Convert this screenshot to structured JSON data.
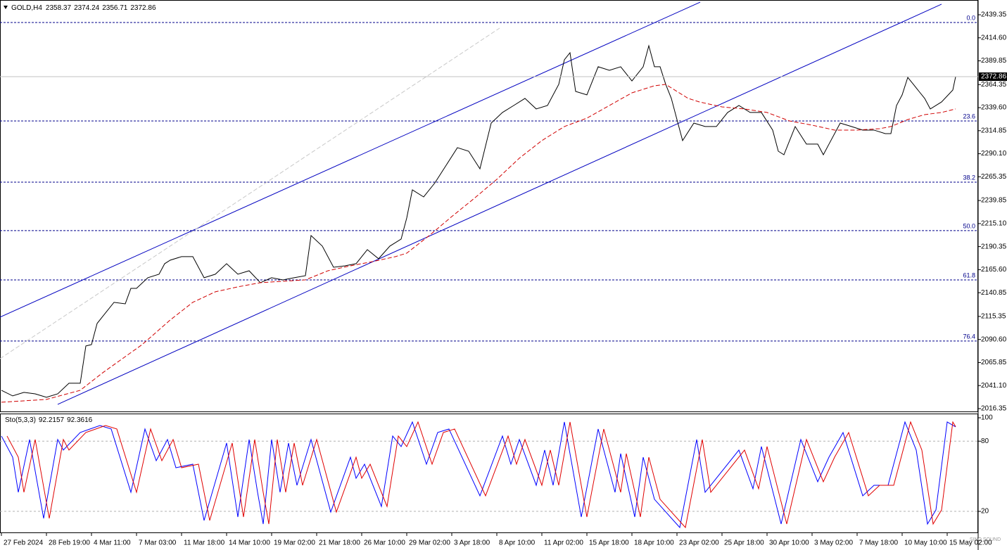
{
  "chart_data": [
    {
      "type": "line",
      "symbol": "GOLD,H4",
      "ohlc": [
        2358.37,
        2374.24,
        2356.71,
        2372.86
      ],
      "xlim": [
        -0.5,
        347
      ],
      "xticks": [
        {
          "value": 0,
          "label": "27 Feb 2024"
        },
        {
          "value": 16,
          "label": "28 Feb 19:00"
        },
        {
          "value": 32,
          "label": "4 Mar 11:00"
        },
        {
          "value": 48,
          "label": "7 Mar 03:00"
        },
        {
          "value": 64,
          "label": "11 Mar 18:00"
        },
        {
          "value": 80,
          "label": "14 Mar 10:00"
        },
        {
          "value": 96,
          "label": "19 Mar 02:00"
        },
        {
          "value": 112,
          "label": "21 Mar 18:00"
        },
        {
          "value": 128,
          "label": "26 Mar 10:00"
        },
        {
          "value": 144,
          "label": "29 Mar 02:00"
        },
        {
          "value": 160,
          "label": "3 Apr 18:00"
        },
        {
          "value": 176,
          "label": "8 Apr 10:00"
        },
        {
          "value": 192,
          "label": "11 Apr 02:00"
        },
        {
          "value": 208,
          "label": "15 Apr 18:00"
        },
        {
          "value": 224,
          "label": "18 Apr 10:00"
        },
        {
          "value": 240,
          "label": "23 Apr 02:00"
        },
        {
          "value": 256,
          "label": "25 Apr 18:00"
        },
        {
          "value": 272,
          "label": "30 Apr 10:00"
        },
        {
          "value": 288,
          "label": "3 May 02:00"
        },
        {
          "value": 304,
          "label": "7 May 18:00"
        },
        {
          "value": 320,
          "label": "10 May 10:00"
        },
        {
          "value": 336,
          "label": "15 May 02:00"
        }
      ],
      "ylim": [
        2013.3,
        2455.2
      ],
      "yticks": [
        2016.35,
        {
          "value": 2041.1,
          "label": "2041.10"
        },
        2065.85,
        {
          "value": 2090.6,
          "label": "2090.60"
        },
        2115.35,
        2140.85,
        {
          "value": 2165.6,
          "label": "2165.60"
        },
        2190.35,
        {
          "value": 2215.1,
          "label": "2215.10"
        },
        2239.85,
        2265.35,
        {
          "value": 2290.1,
          "label": "2290.10"
        },
        2314.85,
        {
          "value": 2339.6,
          "label": "2339.60"
        },
        2364.35,
        2389.85,
        {
          "value": 2414.6,
          "label": "2414.60"
        },
        2439.35
      ],
      "series": [
        {
          "color": "#000000",
          "dash": false,
          "x": [
            0,
            4,
            8,
            12,
            16,
            20,
            24,
            28,
            30,
            32,
            34,
            36,
            40,
            44,
            46,
            48,
            52,
            56,
            58,
            60,
            64,
            68,
            72,
            76,
            80,
            84,
            88,
            92,
            96,
            100,
            104,
            108,
            110,
            114,
            118,
            122,
            126,
            130,
            134,
            138,
            142,
            144,
            146,
            150,
            154,
            158,
            162,
            166,
            170,
            174,
            178,
            182,
            186,
            190,
            194,
            198,
            200,
            202,
            204,
            208,
            212,
            216,
            220,
            224,
            228,
            230,
            232,
            234,
            236,
            238,
            240,
            242,
            246,
            250,
            254,
            258,
            262,
            266,
            270,
            274,
            276,
            278,
            282,
            286,
            290,
            292,
            294,
            298,
            302,
            306,
            310,
            314,
            316,
            318,
            320,
            322,
            324,
            326,
            328,
            330,
            334,
            338,
            339
          ],
          "values": [
            2036.0,
            2030.0,
            2033.8,
            2032.2,
            2028.5,
            2032.2,
            2043.6,
            2043.6,
            2083.6,
            2085.1,
            2107.8,
            2115.4,
            2130.5,
            2128.9,
            2145.5,
            2145.5,
            2156.9,
            2160.7,
            2172.0,
            2175.8,
            2179.6,
            2179.6,
            2156.9,
            2160.7,
            2172.0,
            2160.7,
            2164.4,
            2151.6,
            2156.9,
            2154.6,
            2156.9,
            2159.1,
            2202.2,
            2190.9,
            2168.2,
            2169.7,
            2172.0,
            2187.1,
            2177.3,
            2190.9,
            2198.4,
            2221.1,
            2251.3,
            2243.7,
            2258.8,
            2277.7,
            2296.6,
            2292.8,
            2273.9,
            2323.0,
            2334.4,
            2341.9,
            2349.5,
            2338.2,
            2341.9,
            2364.6,
            2391.0,
            2398.6,
            2357.0,
            2353.3,
            2383.5,
            2379.7,
            2383.5,
            2368.3,
            2383.5,
            2406.1,
            2383.5,
            2383.5,
            2364.6,
            2349.5,
            2326.8,
            2304.2,
            2323.0,
            2319.3,
            2319.3,
            2334.4,
            2341.9,
            2334.4,
            2334.4,
            2315.5,
            2292.8,
            2289.0,
            2319.3,
            2300.4,
            2300.4,
            2289.0,
            2300.4,
            2323.0,
            2319.3,
            2315.5,
            2315.5,
            2311.7,
            2311.7,
            2341.9,
            2353.3,
            2372.1,
            2364.6,
            2357.0,
            2349.5,
            2338.2,
            2345.7,
            2358.5,
            2372.86
          ]
        },
        {
          "color": "#d00000",
          "dash": true,
          "x": [
            0,
            16,
            28,
            36,
            50,
            60,
            68,
            76,
            84,
            92,
            100,
            108,
            116,
            124,
            132,
            140,
            144,
            152,
            160,
            168,
            176,
            184,
            192,
            200,
            208,
            216,
            224,
            232,
            236,
            240,
            244,
            248,
            256,
            264,
            272,
            280,
            288,
            296,
            304,
            312,
            316,
            322,
            328,
            334,
            339
          ],
          "values": [
            2023.2,
            2026.2,
            2036.0,
            2054.9,
            2085.1,
            2111.6,
            2130.5,
            2141.8,
            2147.1,
            2151.6,
            2153.1,
            2154.6,
            2164.4,
            2169.7,
            2174.3,
            2179.6,
            2183.3,
            2202.2,
            2222.6,
            2242.2,
            2262.6,
            2285.3,
            2304.2,
            2319.3,
            2328.3,
            2341.9,
            2355.5,
            2363.1,
            2364.6,
            2357.0,
            2349.5,
            2345.7,
            2340.4,
            2338.2,
            2334.4,
            2325.3,
            2320.8,
            2315.5,
            2315.5,
            2317.0,
            2319.3,
            2326.8,
            2332.1,
            2334.4,
            2338.2
          ]
        }
      ],
      "trend_lines": [
        {
          "color": "#0000c0",
          "dash": false,
          "x": [
            -0.5,
            248.25
          ],
          "values": [
            2114.6,
            2452.9
          ]
        },
        {
          "color": "#0000c0",
          "dash": false,
          "x": [
            20,
            334
          ],
          "values": [
            2020.9,
            2450.7
          ]
        },
        {
          "color": "#c8c8c8",
          "dash": true,
          "x": [
            -0.5,
            177
          ],
          "values": [
            2070.0,
            2425.0
          ]
        }
      ],
      "fib_color": "#00008b",
      "fib_levels": [
        {
          "label": "0.0",
          "value": 2431.0
        },
        {
          "label": "23.6",
          "value": 2325.3
        },
        {
          "label": "38.2",
          "value": 2259.6
        },
        {
          "label": "50.0",
          "value": 2207.5
        },
        {
          "label": "61.8",
          "value": 2154.6
        },
        {
          "label": "76.4",
          "value": 2088.9
        }
      ]
    },
    {
      "type": "line",
      "label": "Sto(5,3,3)",
      "readings": [
        92.2157,
        92.3616
      ],
      "ylim": [
        2,
        103.6
      ],
      "yticks": [
        20,
        80,
        100
      ],
      "levels": [
        20,
        80
      ],
      "series": [
        {
          "color": "#0000ff",
          "dash": false,
          "x": [
            0,
            4,
            6,
            10,
            15,
            20,
            22,
            28,
            35,
            39,
            46,
            51,
            55,
            59,
            62,
            68,
            72,
            80,
            84,
            88,
            91,
            93,
            96,
            99,
            102,
            105,
            110,
            117,
            124,
            126,
            129,
            135,
            139,
            142,
            146,
            151,
            155,
            159,
            170,
            178,
            181,
            184,
            190,
            193,
            196,
            200,
            206,
            212,
            218,
            220,
            225,
            228,
            232,
            241,
            247,
            250,
            252,
            262,
            267,
            270,
            277,
            284,
            290,
            294,
            299,
            306,
            310,
            315,
            321,
            325,
            329,
            332,
            336,
            339
          ],
          "values": [
            84.4,
            66.3,
            36.3,
            81.4,
            14.0,
            81.4,
            72.4,
            87.4,
            93.4,
            90.4,
            36.3,
            90.4,
            63.3,
            81.4,
            57.3,
            60.3,
            12.2,
            78.4,
            15.2,
            81.4,
            36.3,
            9.2,
            81.4,
            36.3,
            78.4,
            42.3,
            81.4,
            19.4,
            66.3,
            48.3,
            60.3,
            24.2,
            84.4,
            75.4,
            96.4,
            60.3,
            87.4,
            90.4,
            33.3,
            84.4,
            60.3,
            81.4,
            42.3,
            72.4,
            42.3,
            96.4,
            15.2,
            90.4,
            36.3,
            69.4,
            15.2,
            66.3,
            30.3,
            6.2,
            81.4,
            36.3,
            42.3,
            72.4,
            39.3,
            75.4,
            9.2,
            81.4,
            45.3,
            66.3,
            87.4,
            33.3,
            42.3,
            42.3,
            96.4,
            72.4,
            9.2,
            21.2,
            96.4,
            92.2157
          ]
        },
        {
          "color": "#e00000",
          "dash": false,
          "x": [
            2,
            6,
            8,
            12,
            17,
            22,
            24,
            30,
            37,
            41,
            48,
            53,
            57,
            61,
            64,
            70,
            74,
            82,
            86,
            90,
            93,
            95,
            98,
            101,
            104,
            107,
            112,
            119,
            126,
            128,
            131,
            137,
            141,
            144,
            148,
            153,
            157,
            161,
            172,
            180,
            183,
            186,
            192,
            195,
            198,
            202,
            208,
            214,
            220,
            222,
            227,
            230,
            234,
            243,
            249,
            252,
            254,
            264,
            269,
            272,
            279,
            286,
            292,
            296,
            301,
            308,
            312,
            317,
            323,
            327,
            331,
            334,
            338,
            339
          ],
          "values": [
            84.4,
            66.3,
            36.3,
            81.4,
            14.0,
            81.4,
            72.4,
            87.4,
            93.4,
            90.4,
            36.3,
            90.4,
            63.3,
            81.4,
            57.3,
            60.3,
            12.2,
            78.4,
            15.2,
            81.4,
            36.3,
            9.2,
            81.4,
            36.3,
            78.4,
            42.3,
            81.4,
            19.4,
            66.3,
            48.3,
            60.3,
            24.2,
            84.4,
            75.4,
            96.4,
            60.3,
            87.4,
            90.4,
            33.3,
            84.4,
            60.3,
            81.4,
            42.3,
            72.4,
            42.3,
            96.4,
            15.2,
            90.4,
            36.3,
            69.4,
            15.2,
            66.3,
            30.3,
            6.2,
            81.4,
            36.3,
            42.3,
            72.4,
            39.3,
            75.4,
            9.2,
            81.4,
            45.3,
            66.3,
            87.4,
            33.3,
            42.3,
            42.3,
            96.4,
            72.4,
            9.2,
            21.2,
            96.4,
            92.3616
          ]
        }
      ]
    }
  ],
  "watermark": "SINO SOUND"
}
